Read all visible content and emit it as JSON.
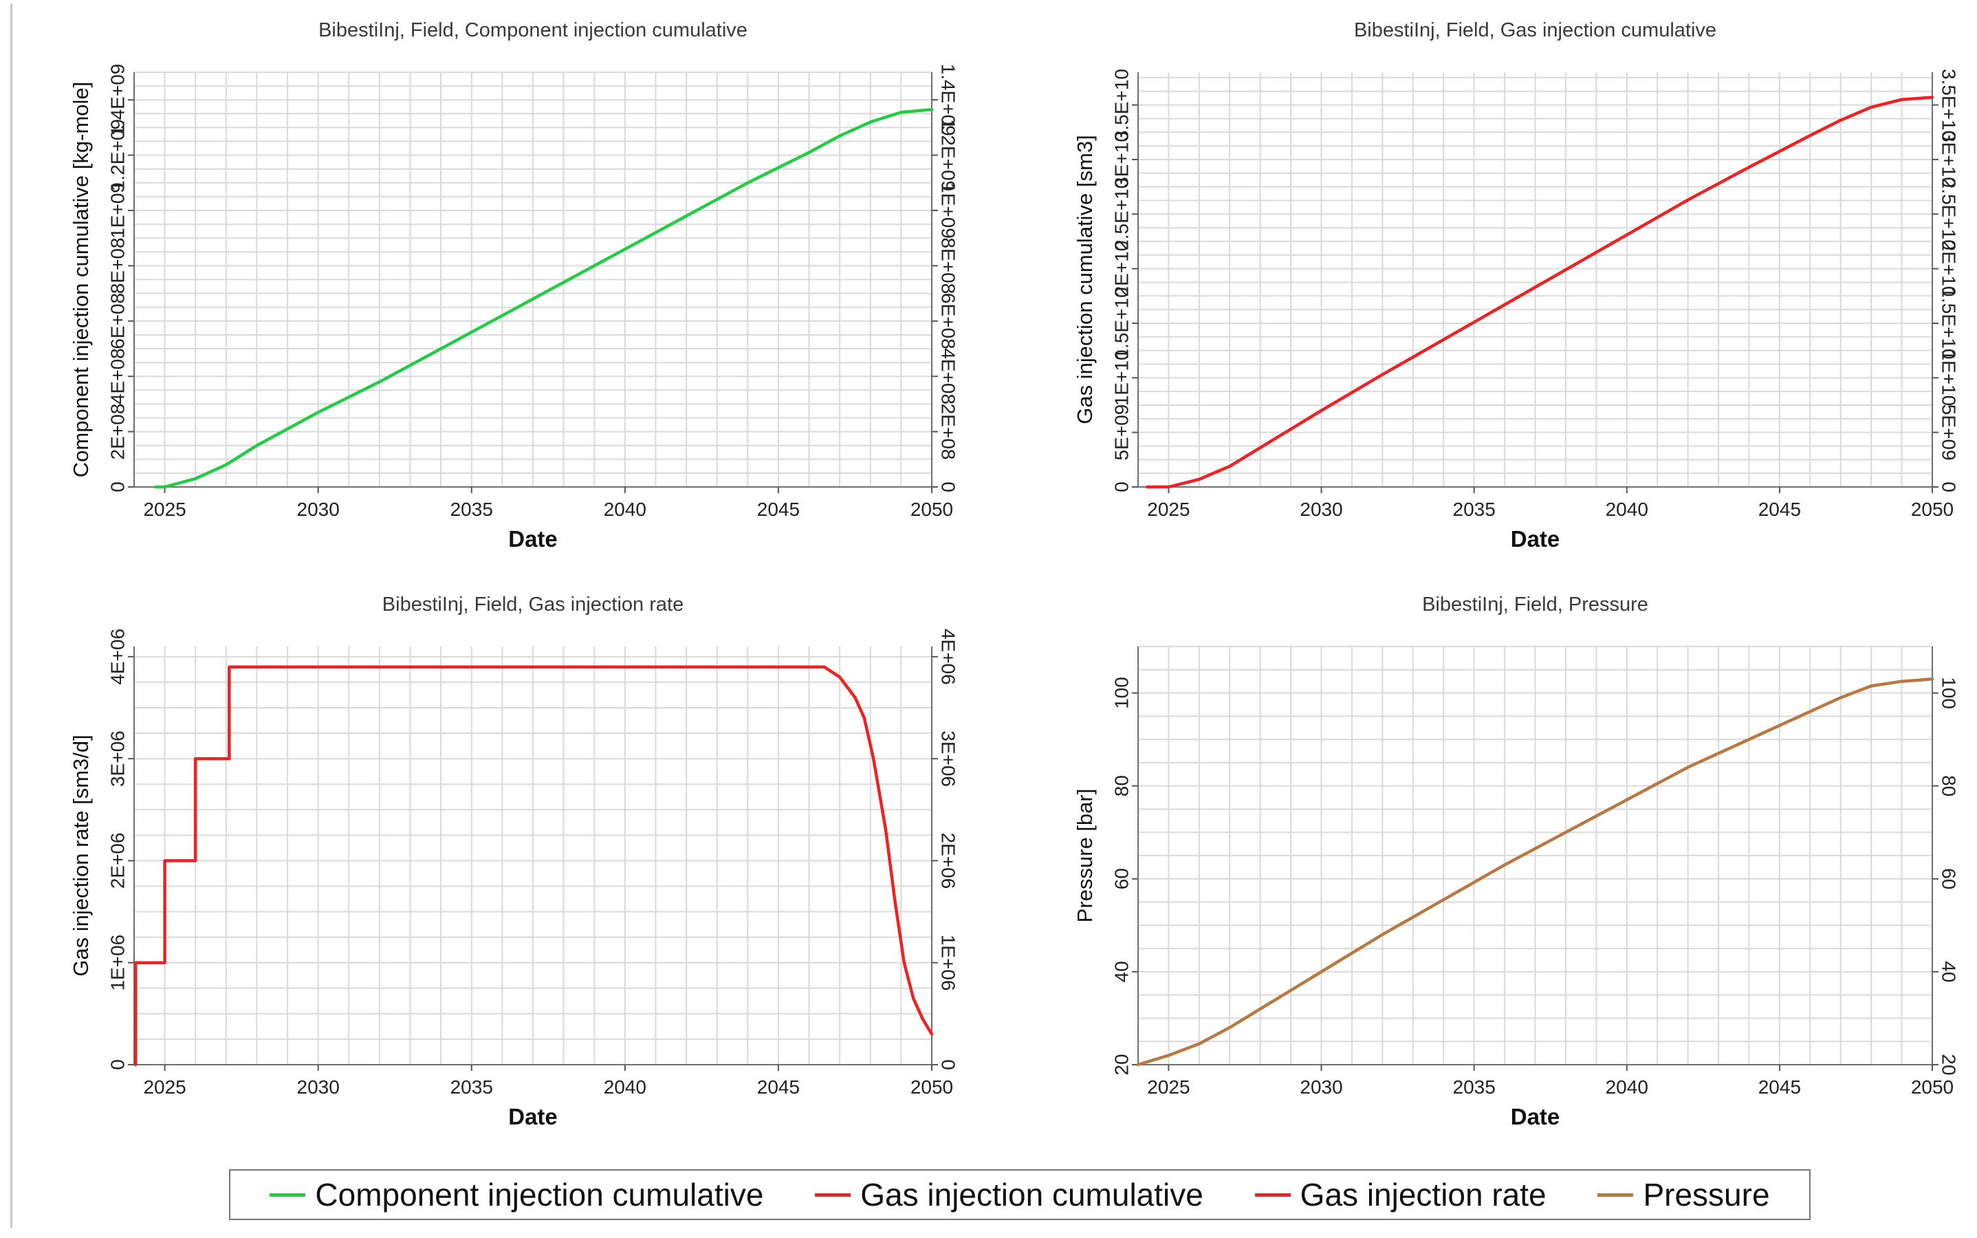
{
  "chart_data": [
    {
      "type": "line",
      "title": "BibestiInj, Field, Component injection cumulative",
      "xlabel": "Date",
      "ylabel": "Component injection cumulative [kg-mole]",
      "xlim": [
        2024,
        2050
      ],
      "ylim": [
        0,
        1500000000
      ],
      "x_ticks": [
        2025,
        2030,
        2035,
        2040,
        2045,
        2050
      ],
      "x_tick_labels": [
        "2025",
        "2030",
        "2035",
        "2040",
        "2045",
        "2050"
      ],
      "y_ticks": [
        0,
        200000000,
        400000000,
        600000000,
        800000000,
        1000000000,
        1200000000,
        1400000000
      ],
      "y_tick_labels": [
        "0",
        "2E+08",
        "4E+08",
        "6E+08",
        "8E+08",
        "1E+09",
        "1.2E+09",
        "1.4E+09"
      ],
      "grid": true,
      "series": [
        {
          "name": "Component injection cumulative",
          "color": "#22cc44",
          "x": [
            2024.7,
            2025,
            2026,
            2027,
            2028,
            2030,
            2032,
            2034,
            2036,
            2038,
            2040,
            2042,
            2044,
            2046,
            2047,
            2048,
            2049,
            2050
          ],
          "values": [
            0,
            0,
            30000000,
            80000000,
            150000000,
            270000000,
            380000000,
            500000000,
            620000000,
            740000000,
            860000000,
            980000000,
            1100000000,
            1210000000,
            1270000000,
            1320000000,
            1355000000,
            1365000000
          ]
        }
      ]
    },
    {
      "type": "line",
      "title": "BibestiInj, Field, Gas injection cumulative",
      "xlabel": "Date",
      "ylabel": "Gas injection cumulative [sm3]",
      "xlim": [
        2024,
        2050
      ],
      "ylim": [
        0,
        38000000000
      ],
      "x_ticks": [
        2025,
        2030,
        2035,
        2040,
        2045,
        2050
      ],
      "x_tick_labels": [
        "2025",
        "2030",
        "2035",
        "2040",
        "2045",
        "2050"
      ],
      "y_ticks": [
        0,
        5000000000,
        10000000000,
        15000000000,
        20000000000,
        25000000000,
        30000000000,
        35000000000
      ],
      "y_tick_labels": [
        "0",
        "5E+09",
        "1E+10",
        "1.5E+10",
        "2E+10",
        "2.5E+10",
        "3E+10",
        "3.5E+10"
      ],
      "grid": true,
      "series": [
        {
          "name": "Gas injection cumulative",
          "color": "#ee2222",
          "x": [
            2024.3,
            2025,
            2026,
            2027,
            2028,
            2030,
            2032,
            2034,
            2036,
            2038,
            2040,
            2042,
            2044,
            2046,
            2047,
            2048,
            2049,
            2050
          ],
          "values": [
            0,
            0,
            700000000,
            1900000000,
            3600000000,
            7000000000,
            10300000000,
            13500000000,
            16700000000,
            19900000000,
            23100000000,
            26300000000,
            29300000000,
            32200000000,
            33600000000,
            34800000000,
            35500000000,
            35700000000
          ]
        }
      ]
    },
    {
      "type": "line",
      "title": "BibestiInj, Field, Gas injection rate",
      "xlabel": "Date",
      "ylabel": "Gas injection rate [sm3/d]",
      "xlim": [
        2024,
        2050
      ],
      "ylim": [
        0,
        4100000
      ],
      "x_ticks": [
        2025,
        2030,
        2035,
        2040,
        2045,
        2050
      ],
      "x_tick_labels": [
        "2025",
        "2030",
        "2035",
        "2040",
        "2045",
        "2050"
      ],
      "y_ticks": [
        0,
        1000000,
        2000000,
        3000000,
        4000000
      ],
      "y_tick_labels": [
        "0",
        "1E+06",
        "2E+06",
        "3E+06",
        "4E+06"
      ],
      "grid": true,
      "series": [
        {
          "name": "Gas injection rate",
          "color": "#ee2222",
          "x": [
            2024.05,
            2024.05,
            2025,
            2025,
            2026,
            2026,
            2027.1,
            2027.1,
            2046.5,
            2047,
            2047.5,
            2047.8,
            2048.1,
            2048.5,
            2048.8,
            2049.1,
            2049.4,
            2049.7,
            2050
          ],
          "values": [
            0,
            1000000,
            1000000,
            2000000,
            2000000,
            3000000,
            3000000,
            3900000,
            3900000,
            3800000,
            3600000,
            3400000,
            3000000,
            2300000,
            1600000,
            1000000,
            650000,
            450000,
            300000
          ]
        }
      ]
    },
    {
      "type": "line",
      "title": "BibestiInj, Field, Pressure",
      "xlabel": "Date",
      "ylabel": "Pressure [bar]",
      "xlim": [
        2024,
        2050
      ],
      "ylim": [
        20,
        110
      ],
      "x_ticks": [
        2025,
        2030,
        2035,
        2040,
        2045,
        2050
      ],
      "x_tick_labels": [
        "2025",
        "2030",
        "2035",
        "2040",
        "2045",
        "2050"
      ],
      "y_ticks": [
        20,
        40,
        60,
        80,
        100
      ],
      "y_tick_labels": [
        "20",
        "40",
        "60",
        "80",
        "100"
      ],
      "grid": true,
      "series": [
        {
          "name": "Pressure",
          "color": "#b87840",
          "x": [
            2024,
            2025,
            2026,
            2027,
            2028,
            2030,
            2032,
            2034,
            2036,
            2038,
            2040,
            2042,
            2044,
            2046,
            2047,
            2048,
            2049,
            2050
          ],
          "values": [
            20,
            22,
            24.5,
            28,
            32,
            40,
            48,
            55.5,
            63,
            70,
            77,
            84,
            90,
            96,
            99,
            101.5,
            102.5,
            103
          ]
        }
      ]
    }
  ],
  "legend": [
    {
      "label": "Component injection cumulative",
      "color": "#22cc44"
    },
    {
      "label": "Gas injection cumulative",
      "color": "#ee2222"
    },
    {
      "label": "Gas injection rate",
      "color": "#ee2222"
    },
    {
      "label": "Pressure",
      "color": "#b87840"
    }
  ]
}
